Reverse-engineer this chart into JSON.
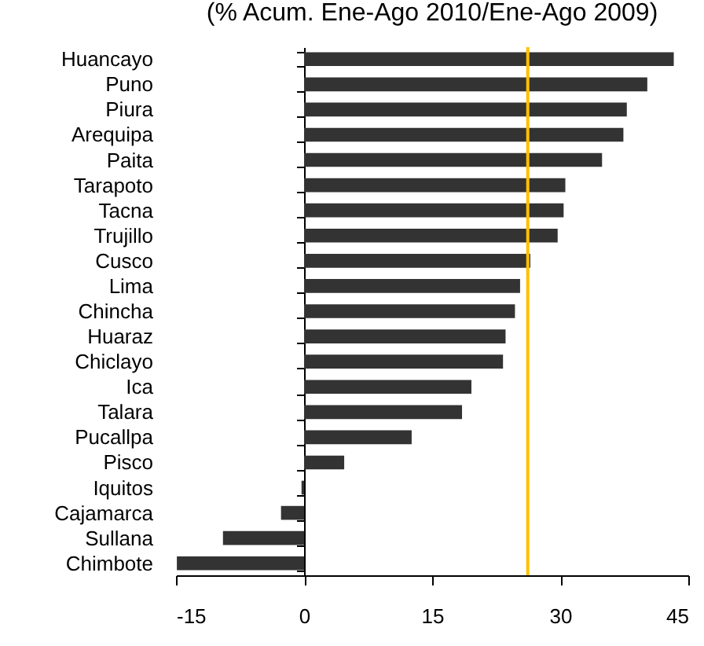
{
  "chart_data": {
    "type": "bar",
    "orientation": "horizontal",
    "title": "(% Acum. Ene-Ago 2010/Ene-Ago 2009)",
    "categories": [
      "Huancayo",
      "Puno",
      "Piura",
      "Arequipa",
      "Paita",
      "Tarapoto",
      "Tacna",
      "Trujillo",
      "Cusco",
      "Lima",
      "Chincha",
      "Huaraz",
      "Chiclayo",
      "Ica",
      "Talara",
      "Pucallpa",
      "Pisco",
      "Iquitos",
      "Cajamarca",
      "Sullana",
      "Chimbote"
    ],
    "values": [
      43.3,
      40.2,
      37.8,
      37.4,
      34.9,
      30.6,
      30.4,
      29.7,
      26.5,
      25.3,
      24.7,
      23.6,
      23.3,
      19.6,
      18.5,
      12.6,
      4.7,
      -0.3,
      -2.7,
      -9.5,
      -14.9
    ],
    "color": "#333333",
    "xlim": [
      -15,
      45
    ],
    "xticks": [
      -15,
      0,
      15,
      30,
      45
    ],
    "ref_lines": [
      {
        "axis": "x",
        "value": 26.2,
        "color": "#ffc000"
      }
    ]
  }
}
